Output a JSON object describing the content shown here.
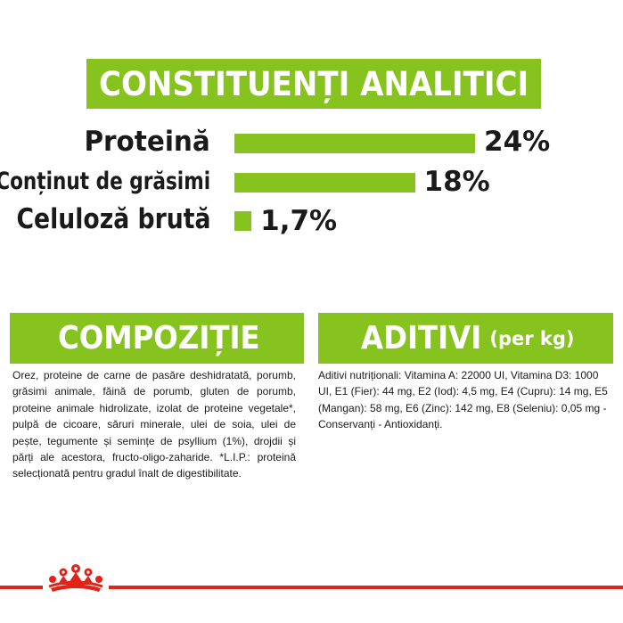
{
  "analytic": {
    "title": "CONSTITUENȚI ANALITICI",
    "rows": [
      {
        "label": "Proteină",
        "value": "24%",
        "percent": 24
      },
      {
        "label": "Conținut de grăsimi",
        "value": "18%",
        "percent": 18
      },
      {
        "label": "Celuloză brută",
        "value": "1,7%",
        "percent": 1.7
      }
    ]
  },
  "composition": {
    "title": "COMPOZIȚIE",
    "text": "Orez, proteine de carne de pasăre deshidratată, porumb, grăsimi animale, făină de porumb, gluten de porumb, proteine animale hidrolizate, izolat de proteine vegetale*, pulpă de cicoare, săruri minerale, ulei de soia, ulei de pește, tegumente și semințe de psyllium (1%), drojdii și părți ale acestora, fructo-oligo-zaharide. *L.I.P.: proteină selecționată pentru gradul înalt de digestibilitate."
  },
  "additives": {
    "title": "ADITIVI",
    "subtitle": "(per kg)",
    "text": "Aditivi nutriționali: Vitamina A: 22000 UI, Vitamina D3: 1000 UI, E1 (Fier): 44 mg, E2 (Iod): 4,5 mg, E4 (Cupru): 14 mg, E5 (Mangan): 58 mg, E6 (Zinc): 142 mg, E8 (Seleniu): 0,05 mg - Conservanți - Antioxidanți."
  },
  "colors": {
    "accent_green": "#86c31e",
    "brand_red": "#e2231a"
  },
  "brand": {
    "logo_icon": "royal-canin-crown-icon"
  }
}
